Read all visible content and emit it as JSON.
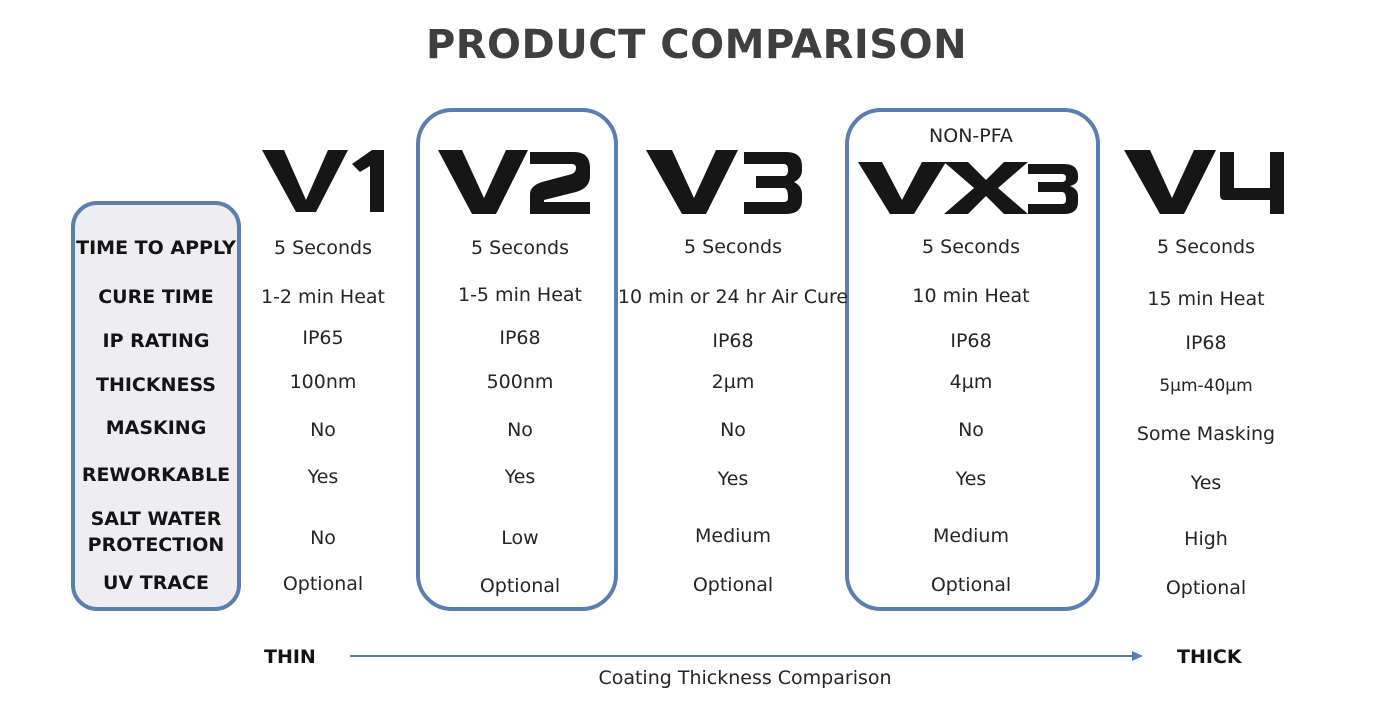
{
  "title": "PRODUCT COMPARISON",
  "accent_color": "#5a7fae",
  "row_labels": {
    "time_to_apply": "TIME TO APPLY",
    "cure_time": "CURE TIME",
    "ip_rating": "IP RATING",
    "thickness": "THICKNESS",
    "masking": "MASKING",
    "reworkable": "REWORKABLE",
    "salt_water_line1": "SALT WATER",
    "salt_water_line2": "PROTECTION",
    "uv_trace": "UV TRACE"
  },
  "products": [
    {
      "logo": "V1",
      "tag": "",
      "time_to_apply": "5 Seconds",
      "cure_time": "1-2 min Heat",
      "ip_rating": "IP65",
      "thickness": "100nm",
      "masking": "No",
      "reworkable": "Yes",
      "salt_water": "No",
      "uv_trace": "Optional"
    },
    {
      "logo": "V2",
      "tag": "",
      "time_to_apply": "5 Seconds",
      "cure_time": "1-5 min Heat",
      "ip_rating": "IP68",
      "thickness": "500nm",
      "masking": "No",
      "reworkable": "Yes",
      "salt_water": "Low",
      "uv_trace": "Optional"
    },
    {
      "logo": "V3",
      "tag": "",
      "time_to_apply": "5 Seconds",
      "cure_time": "10 min or 24 hr Air Cure",
      "ip_rating": "IP68",
      "thickness": "2µm",
      "masking": "No",
      "reworkable": "Yes",
      "salt_water": "Medium",
      "uv_trace": "Optional"
    },
    {
      "logo": "VX3",
      "tag": "NON-PFA",
      "time_to_apply": "5 Seconds",
      "cure_time": "10 min Heat",
      "ip_rating": "IP68",
      "thickness": "4µm",
      "masking": "No",
      "reworkable": "Yes",
      "salt_water": "Medium",
      "uv_trace": "Optional"
    },
    {
      "logo": "V4",
      "tag": "",
      "time_to_apply": "5 Seconds",
      "cure_time": "15 min Heat",
      "ip_rating": "IP68",
      "thickness": "5µm-40µm",
      "masking": "Some Masking",
      "reworkable": "Yes",
      "salt_water": "High",
      "uv_trace": "Optional"
    }
  ],
  "scale": {
    "thin": "THIN",
    "thick": "THICK",
    "caption": "Coating Thickness Comparison"
  }
}
